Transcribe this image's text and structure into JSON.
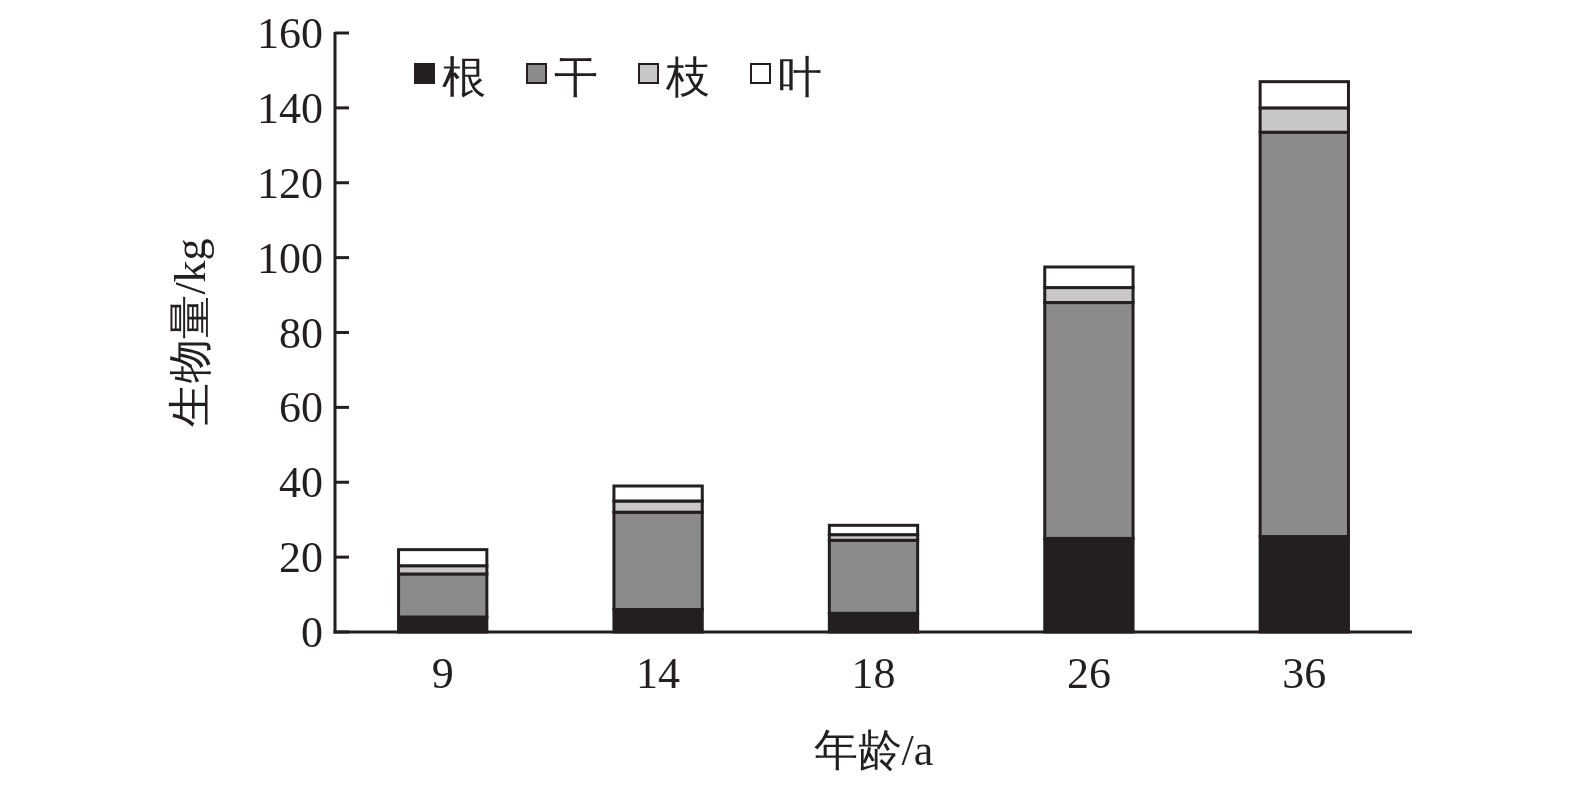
{
  "chart_data": {
    "type": "bar",
    "stacked": true,
    "xlabel": "年龄/a",
    "ylabel": "生物量/kg",
    "categories": [
      "9",
      "14",
      "18",
      "26",
      "36"
    ],
    "series": [
      {
        "name": "根",
        "color": "#231f20",
        "values": [
          4,
          6,
          5,
          25,
          25.5
        ]
      },
      {
        "name": "干",
        "color": "#8c8b8b",
        "values": [
          11.5,
          26,
          19.5,
          63,
          108
        ]
      },
      {
        "name": "枝",
        "color": "#c8c8c8",
        "values": [
          2.2,
          3,
          1.5,
          4,
          6.5
        ]
      },
      {
        "name": "叶",
        "color": "#ffffff",
        "values": [
          4.3,
          4,
          2.5,
          5.5,
          7
        ]
      }
    ],
    "ylim": [
      0,
      160
    ],
    "yticks": [
      0,
      20,
      40,
      60,
      80,
      100,
      120,
      140,
      160
    ],
    "legend": "top left",
    "grid": false
  }
}
